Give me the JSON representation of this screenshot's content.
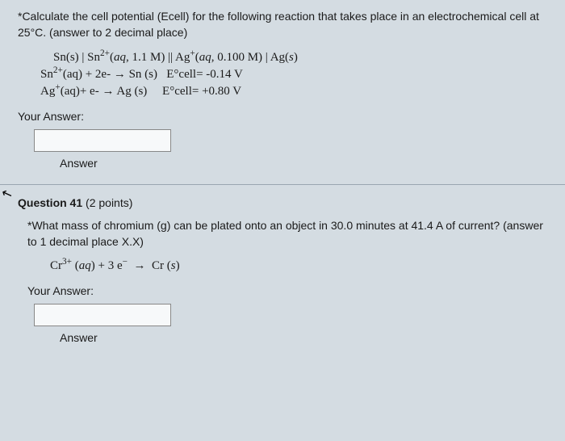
{
  "cursor_glyph": "↖",
  "q40": {
    "prompt": "*Calculate the cell potential (Ecell) for the following reaction that takes place in an electrochemical cell at 25°C. (answer to 2 decimal place)",
    "cell_notation_html": "Sn(s) | Sn<sup>2+</sup>(<i>aq</i>, 1.1 M) || Ag<sup>+</sup>(<i>aq</i>, 0.100 M) | Ag(<i>s</i>)",
    "half1_html": "Sn<sup>2+</sup>(aq) + 2e- → Sn (s)&nbsp;&nbsp;&nbsp;E°cell= -0.14 V",
    "half2_html": "Ag<sup>+</sup>(aq)+ e- → Ag (s)&nbsp;&nbsp;&nbsp;&nbsp;&nbsp;E°cell= +0.80 V",
    "your_answer_label": "Your Answer:",
    "answer_value": "",
    "answer_label": "Answer"
  },
  "q41": {
    "header_num": "Question 41",
    "header_points": " (2 points)",
    "prompt": "*What mass of chromium (g) can be plated onto an object in 30.0 minutes at 41.4 A of current? (answer to 1 decimal place X.X)",
    "equation_html": "Cr<sup>3+</sup> (<i>aq</i>) + 3 e<sup>−</sup> &nbsp;→&nbsp; Cr (<i>s</i>)",
    "your_answer_label": "Your Answer:",
    "answer_value": "",
    "answer_label": "Answer"
  }
}
